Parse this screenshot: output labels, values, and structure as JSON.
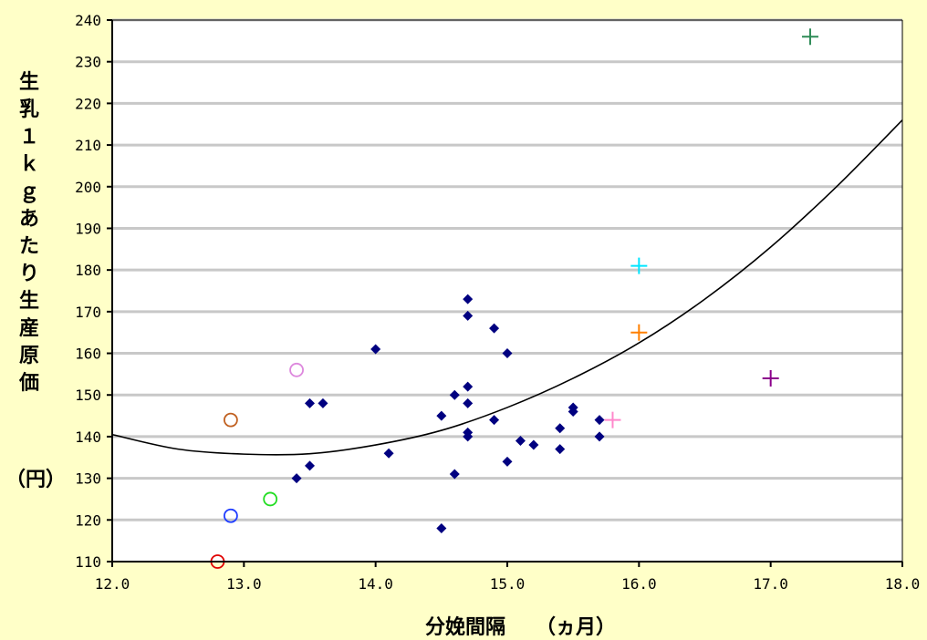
{
  "chart_data": {
    "type": "scatter",
    "xlabel": "分娩間隔　　（ヵ月）",
    "ylabel": "生乳１ｋｇあたり生産原価",
    "ylabel_unit": "（円）",
    "xlim": [
      12.0,
      18.0
    ],
    "ylim": [
      110,
      240
    ],
    "x_ticks": [
      12.0,
      13.0,
      14.0,
      15.0,
      16.0,
      17.0,
      18.0
    ],
    "x_tick_labels": [
      "12.0",
      "13.0",
      "14.0",
      "15.0",
      "16.0",
      "17.0",
      "18.0"
    ],
    "y_ticks": [
      110,
      120,
      130,
      140,
      150,
      160,
      170,
      180,
      190,
      200,
      210,
      220,
      230,
      240
    ],
    "y_tick_labels": [
      "110",
      "120",
      "130",
      "140",
      "150",
      "160",
      "170",
      "180",
      "190",
      "200",
      "210",
      "220",
      "230",
      "240"
    ],
    "grid": "horizontal",
    "background": "#FFFFC8",
    "plot_background": "#FFFFFF",
    "gridline_color": "#C8C8C8",
    "series": [
      {
        "marker": "diamond",
        "color": "#000080",
        "points": [
          [
            13.4,
            130
          ],
          [
            13.5,
            133
          ],
          [
            13.5,
            148
          ],
          [
            13.6,
            148
          ],
          [
            14.0,
            161
          ],
          [
            14.1,
            136
          ],
          [
            14.5,
            118
          ],
          [
            14.5,
            145
          ],
          [
            14.6,
            131
          ],
          [
            14.6,
            150
          ],
          [
            14.7,
            173
          ],
          [
            14.7,
            169
          ],
          [
            14.7,
            152
          ],
          [
            14.7,
            148
          ],
          [
            14.7,
            141
          ],
          [
            14.7,
            140
          ],
          [
            14.9,
            166
          ],
          [
            14.9,
            144
          ],
          [
            15.0,
            160
          ],
          [
            15.0,
            134
          ],
          [
            15.1,
            139
          ],
          [
            15.2,
            138
          ],
          [
            15.4,
            142
          ],
          [
            15.4,
            137
          ],
          [
            15.5,
            147
          ],
          [
            15.5,
            146
          ],
          [
            15.7,
            144
          ],
          [
            15.7,
            140
          ]
        ]
      },
      {
        "marker": "circle",
        "points": [
          {
            "x": 12.8,
            "y": 110,
            "color": "#E00000"
          },
          {
            "x": 12.9,
            "y": 121,
            "color": "#1E3CFF"
          },
          {
            "x": 13.2,
            "y": 125,
            "color": "#22DD22"
          },
          {
            "x": 12.9,
            "y": 144,
            "color": "#C06020"
          },
          {
            "x": 13.4,
            "y": 156,
            "color": "#DD88DD"
          }
        ]
      },
      {
        "marker": "plus",
        "points": [
          {
            "x": 17.3,
            "y": 236,
            "color": "#2E8B57"
          },
          {
            "x": 16.0,
            "y": 181,
            "color": "#00E5FF"
          },
          {
            "x": 16.0,
            "y": 165,
            "color": "#FF8000"
          },
          {
            "x": 17.0,
            "y": 154,
            "color": "#8B008B"
          },
          {
            "x": 15.8,
            "y": 144,
            "color": "#FF88CC"
          }
        ]
      }
    ],
    "trendline": {
      "type": "polynomial",
      "color": "#000000",
      "points": [
        [
          12.0,
          140.5
        ],
        [
          12.5,
          137.0
        ],
        [
          13.0,
          135.8
        ],
        [
          13.5,
          135.9
        ],
        [
          14.0,
          138.0
        ],
        [
          14.5,
          141.5
        ],
        [
          15.0,
          147.0
        ],
        [
          15.5,
          154.0
        ],
        [
          16.0,
          162.5
        ],
        [
          16.5,
          173.0
        ],
        [
          17.0,
          185.5
        ],
        [
          17.5,
          200.0
        ],
        [
          18.0,
          216.0
        ]
      ]
    }
  }
}
